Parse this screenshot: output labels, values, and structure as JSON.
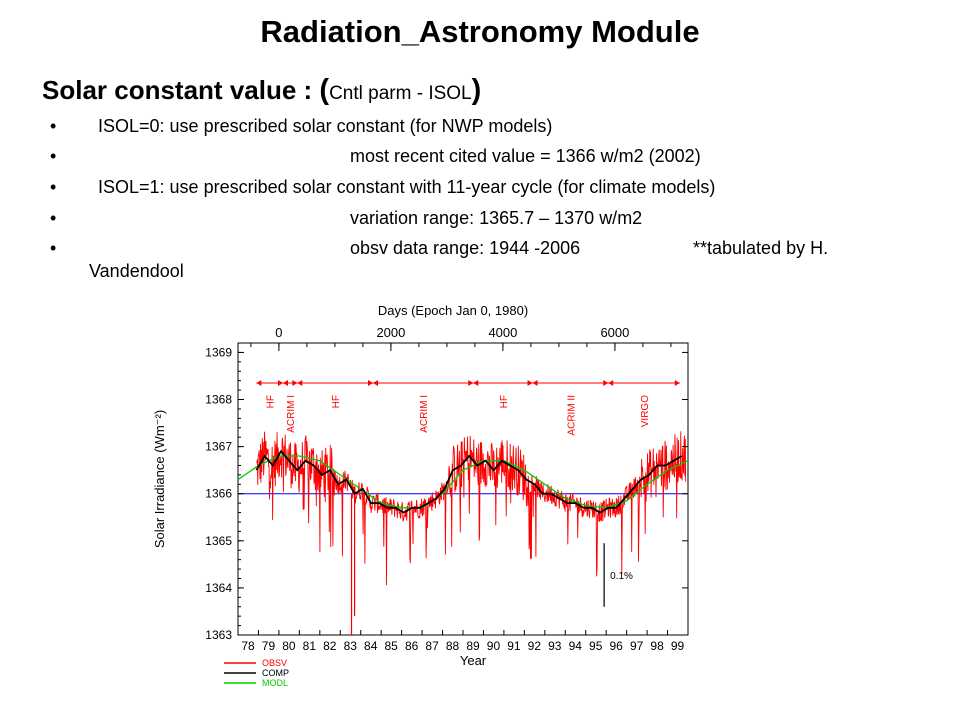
{
  "slide": {
    "title": "Radiation_Astronomy Module",
    "subtitle": {
      "main": "Solar constant value : ",
      "open": "(",
      "note": "Cntl parm - ISOL",
      "close": ")"
    },
    "bullets": [
      {
        "dot": "•",
        "text": "ISOL=0: use prescribed solar constant (for NWP models)"
      },
      {
        "dot": "•",
        "text": "most recent cited value = 1366 w/m2  (2002)"
      },
      {
        "dot": "•",
        "text": "ISOL=1: use prescribed solar constant with 11-year cycle (for climate models)"
      },
      {
        "dot": "•",
        "text": "variation range:   1365.7 – 1370 w/m2"
      },
      {
        "dot": "•",
        "text": "obsv data range: 1944 -2006",
        "text2": "**tabulated by H.",
        "text3": "Vandendool"
      }
    ]
  },
  "chart_data": {
    "type": "line",
    "top_axis_label": "Days (Epoch Jan 0, 1980)",
    "top_ticks": [
      0,
      2000,
      4000,
      6000
    ],
    "xlabel": "Year",
    "ylabel": "Solar Irradiance (Wm⁻²)",
    "ylim": [
      1363,
      1369.2
    ],
    "yticks": [
      1363,
      1364,
      1365,
      1366,
      1367,
      1368,
      1369
    ],
    "xlim": [
      1978.0,
      2000.0
    ],
    "xtick_labels": [
      "78",
      "79",
      "80",
      "81",
      "82",
      "83",
      "84",
      "85",
      "86",
      "87",
      "88",
      "89",
      "90",
      "91",
      "92",
      "93",
      "94",
      "95",
      "96",
      "97",
      "98",
      "99"
    ],
    "reference_line": 1366.0,
    "scale_bar_label": "0.1%",
    "instrument_intervals": [
      {
        "label": "HF",
        "start": 1978.9,
        "end": 1980.2
      },
      {
        "label": "ACRIM I",
        "start": 1980.2,
        "end": 1980.9
      },
      {
        "label": "HF",
        "start": 1980.9,
        "end": 1984.6
      },
      {
        "label": "ACRIM I",
        "start": 1984.6,
        "end": 1989.5
      },
      {
        "label": "HF",
        "start": 1989.5,
        "end": 1992.4
      },
      {
        "label": "ACRIM II",
        "start": 1992.4,
        "end": 1996.1
      },
      {
        "label": "VIRGO",
        "start": 1996.1,
        "end": 1999.6
      }
    ],
    "series": [
      {
        "name": "OBSV",
        "color": "#ff0000"
      },
      {
        "name": "COMP",
        "color": "#000000",
        "x": [
          1978.9,
          1979.3,
          1979.7,
          1980.1,
          1980.5,
          1980.9,
          1981.3,
          1981.7,
          1982.1,
          1982.5,
          1982.9,
          1983.3,
          1983.7,
          1984.1,
          1984.5,
          1984.9,
          1985.3,
          1985.7,
          1986.1,
          1986.5,
          1986.9,
          1987.3,
          1987.7,
          1988.1,
          1988.5,
          1988.9,
          1989.3,
          1989.7,
          1990.1,
          1990.5,
          1990.9,
          1991.3,
          1991.7,
          1992.1,
          1992.5,
          1992.9,
          1993.3,
          1993.7,
          1994.1,
          1994.5,
          1994.9,
          1995.3,
          1995.7,
          1996.1,
          1996.5,
          1996.9,
          1997.3,
          1997.7,
          1998.1,
          1998.5,
          1998.9,
          1999.3,
          1999.7
        ],
        "y": [
          1366.5,
          1366.8,
          1366.6,
          1366.9,
          1366.7,
          1366.5,
          1366.7,
          1366.6,
          1366.4,
          1366.5,
          1366.2,
          1366.3,
          1366.0,
          1366.1,
          1365.8,
          1365.8,
          1365.7,
          1365.7,
          1365.6,
          1365.7,
          1365.7,
          1365.8,
          1365.9,
          1366.1,
          1366.5,
          1366.6,
          1366.8,
          1366.6,
          1366.7,
          1366.5,
          1366.7,
          1366.6,
          1366.5,
          1366.3,
          1366.2,
          1366.0,
          1366.0,
          1365.9,
          1365.8,
          1365.8,
          1365.7,
          1365.7,
          1365.6,
          1365.7,
          1365.7,
          1365.9,
          1366.1,
          1366.3,
          1366.4,
          1366.6,
          1366.6,
          1366.7,
          1366.8
        ]
      },
      {
        "name": "MODL",
        "color": "#00cc00",
        "x": [
          1978.0,
          1979.0,
          1980.0,
          1981.0,
          1982.0,
          1983.0,
          1984.0,
          1985.0,
          1986.0,
          1987.0,
          1988.0,
          1989.0,
          1990.0,
          1991.0,
          1992.0,
          1993.0,
          1994.0,
          1995.0,
          1996.0,
          1997.0,
          1998.0,
          1999.0,
          2000.0
        ],
        "y": [
          1366.3,
          1366.6,
          1366.8,
          1366.8,
          1366.7,
          1366.4,
          1366.1,
          1365.8,
          1365.7,
          1365.7,
          1366.0,
          1366.5,
          1366.7,
          1366.7,
          1366.5,
          1366.2,
          1365.9,
          1365.75,
          1365.7,
          1365.85,
          1366.2,
          1366.5,
          1366.7
        ]
      }
    ]
  }
}
